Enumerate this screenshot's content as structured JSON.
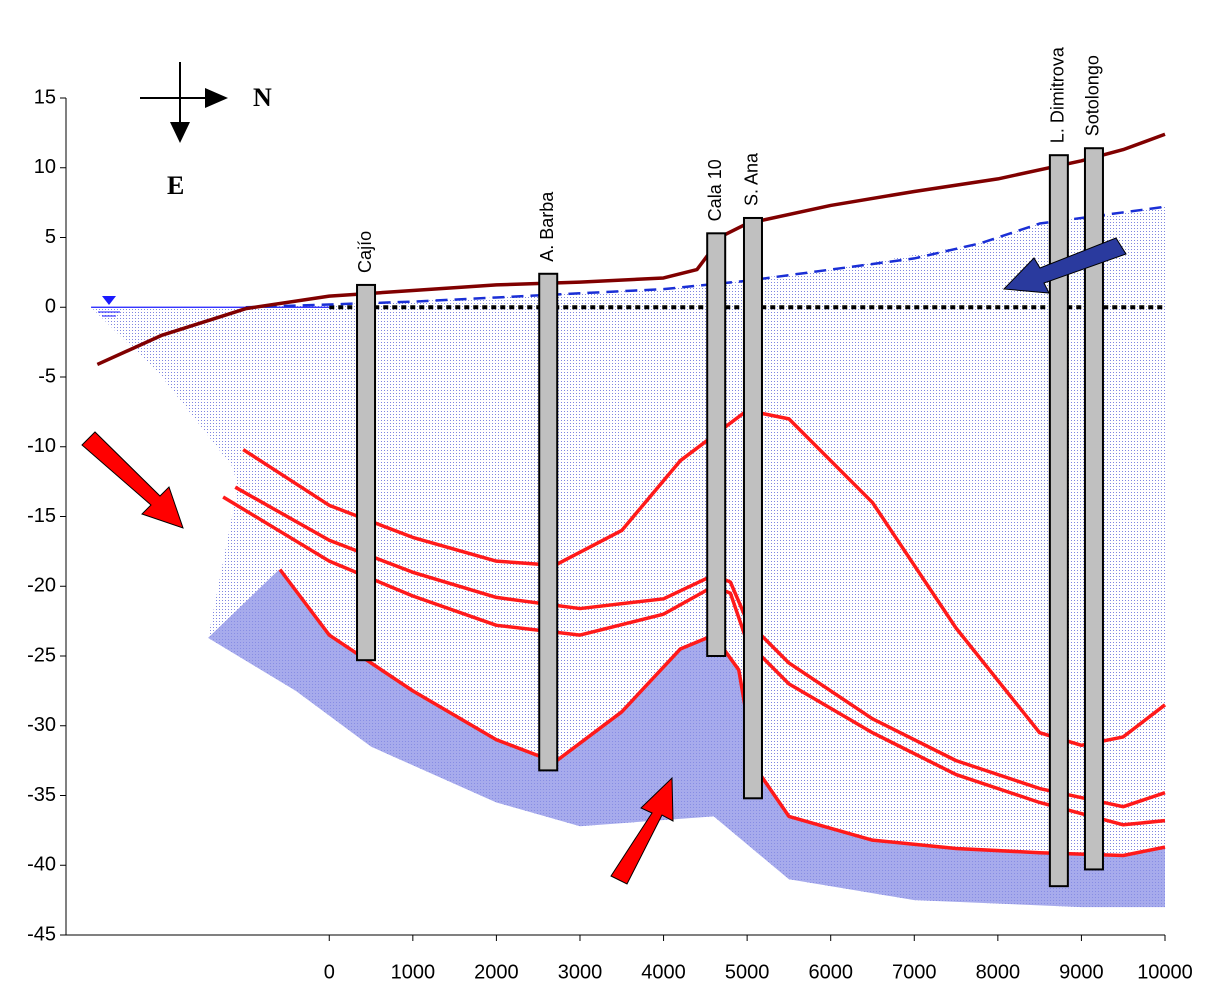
{
  "chart_data": {
    "type": "section",
    "xlim": [
      -3150,
      10000
    ],
    "ylim": [
      -45,
      15
    ],
    "xticks": [
      0,
      1000,
      2000,
      3000,
      4000,
      5000,
      6000,
      7000,
      8000,
      9000,
      10000
    ],
    "yticks": [
      -45,
      -40,
      -35,
      -30,
      -25,
      -20,
      -15,
      -10,
      -5,
      0,
      5,
      10,
      15
    ],
    "compass": {
      "north": "N",
      "east": "E"
    },
    "zones": [
      {
        "color": "#c9cdf0",
        "x": [
          -2850,
          -1000,
          0,
          2000,
          4000,
          6000,
          7800,
          8500,
          10000,
          10000,
          9000,
          7000,
          5500,
          4600,
          3000,
          2000,
          500,
          -400,
          -1450,
          -1100,
          -1150,
          -2000
        ],
        "y": [
          0,
          0,
          0.2,
          0.7,
          1.3,
          2.7,
          4.6,
          6.0,
          7.2,
          -43,
          -43,
          -42.5,
          -41,
          -36.5,
          -37.2,
          -35.5,
          -31.5,
          -27.5,
          -23.7,
          -13,
          -11.5,
          -5
        ]
      },
      {
        "color": "#8a8fe6",
        "x": [
          -1450,
          -600,
          0,
          1000,
          2000,
          2700,
          3500,
          4200,
          4600,
          4900,
          5100,
          5500,
          6500,
          7500,
          8500,
          9500,
          10000,
          10000,
          9000,
          7000,
          5500,
          4600,
          3000,
          2000,
          500,
          -400
        ],
        "y": [
          -23.7,
          -18.8,
          -23.5,
          -27.5,
          -31,
          -32.6,
          -29,
          -24.5,
          -23.5,
          -26,
          -33,
          -36.5,
          -38.2,
          -38.8,
          -39.1,
          -39.3,
          -38.7,
          -43,
          -43,
          -42.5,
          -41,
          -36.5,
          -37.2,
          -35.5,
          -31.5,
          -27.5
        ]
      }
    ],
    "lines": [
      {
        "color": "#1a1aff",
        "width": 1.2,
        "dash": "none",
        "x": [
          -2850,
          0
        ],
        "y": [
          0,
          0
        ]
      },
      {
        "color": "#000000",
        "width": 4,
        "dash": "5,4",
        "x": [
          0,
          10000
        ],
        "y": [
          0,
          0
        ]
      },
      {
        "color": "#1a2fd6",
        "width": 2.5,
        "dash": "12,7",
        "x": [
          -1000,
          0,
          1000,
          2000,
          3000,
          4000,
          5000,
          6000,
          7000,
          7800,
          8500,
          9000,
          10000
        ],
        "y": [
          0,
          0.2,
          0.4,
          0.7,
          1.0,
          1.3,
          1.9,
          2.7,
          3.5,
          4.6,
          6.0,
          6.4,
          7.2
        ]
      },
      {
        "color": "#800000",
        "width": 3.5,
        "dash": "none",
        "x": [
          -2775,
          -2000,
          -1000,
          0,
          1000,
          2000,
          3000,
          4000,
          4400,
          4700,
          5000,
          6000,
          7000,
          8000,
          9000,
          9500,
          10000
        ],
        "y": [
          -4.1,
          -2,
          -0.1,
          0.8,
          1.2,
          1.6,
          1.8,
          2.1,
          2.7,
          5.1,
          6.0,
          7.3,
          8.3,
          9.2,
          10.5,
          11.3,
          12.4
        ]
      },
      {
        "color": "#ff1a1a",
        "width": 3.5,
        "dash": "none",
        "x": [
          -1030,
          0,
          1000,
          2000,
          2700,
          3500,
          4200,
          5000,
          5500,
          6500,
          7500,
          8500,
          9000,
          9500,
          10000
        ],
        "y": [
          -10.2,
          -14.2,
          -16.5,
          -18.2,
          -18.5,
          -16,
          -11,
          -7.4,
          -8,
          -14,
          -23,
          -30.5,
          -31.4,
          -30.8,
          -28.5
        ]
      },
      {
        "color": "#ff1a1a",
        "width": 3.5,
        "dash": "none",
        "x": [
          -1125,
          0,
          1000,
          2000,
          3000,
          4000,
          4600,
          4800,
          5000,
          5500,
          6500,
          7500,
          8500,
          9500,
          10000
        ],
        "y": [
          -12.9,
          -16.7,
          -19,
          -20.8,
          -21.6,
          -20.9,
          -19.2,
          -19.7,
          -22.5,
          -25.5,
          -29.5,
          -32.5,
          -34.5,
          -35.8,
          -34.8
        ]
      },
      {
        "color": "#ff1a1a",
        "width": 3.5,
        "dash": "none",
        "x": [
          -1270,
          0,
          1000,
          2000,
          3000,
          4000,
          4600,
          4800,
          5000,
          5500,
          6500,
          7500,
          8500,
          9500,
          10000
        ],
        "y": [
          -13.6,
          -18.2,
          -20.7,
          -22.8,
          -23.5,
          -22,
          -20,
          -20.5,
          -24,
          -27,
          -30.5,
          -33.5,
          -35.5,
          -37.1,
          -36.8
        ]
      },
      {
        "color": "#ff1a1a",
        "width": 3.5,
        "dash": "none",
        "x": [
          -590,
          0,
          1000,
          2000,
          2700,
          3500,
          4200,
          4600,
          4900,
          5100,
          5500,
          6500,
          7500,
          8500,
          9500,
          10000
        ],
        "y": [
          -18.8,
          -23.5,
          -27.5,
          -31,
          -32.6,
          -29,
          -24.5,
          -23.5,
          -26,
          -33,
          -36.5,
          -38.2,
          -38.8,
          -39.1,
          -39.3,
          -38.7
        ]
      }
    ],
    "wells": [
      {
        "name": "Cajío",
        "x": 440,
        "top": 1.6,
        "bottom": -25.3
      },
      {
        "name": "A. Barba",
        "x": 2620,
        "top": 2.4,
        "bottom": -33.2
      },
      {
        "name": "Cala 10",
        "x": 4630,
        "top": 5.3,
        "bottom": -25
      },
      {
        "name": "S. Ana",
        "x": 5070,
        "top": 6.4,
        "bottom": -35.2
      },
      {
        "name": "L. Dimitrova",
        "x": 8730,
        "top": 10.9,
        "bottom": -41.5
      },
      {
        "name": "Sotolongo",
        "x": 9150,
        "top": 11.4,
        "bottom": -40.3
      }
    ]
  }
}
